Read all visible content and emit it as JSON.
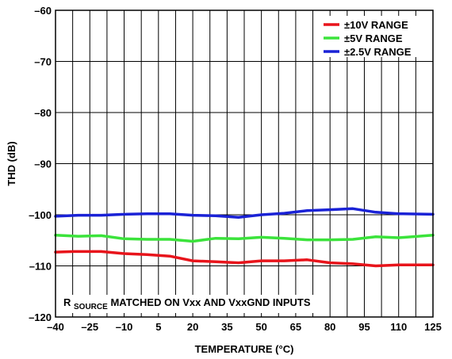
{
  "chart_data": {
    "type": "line",
    "xlabel": "TEMPERATURE (°C)",
    "ylabel": "THD (dB)",
    "xlim": [
      -40,
      125
    ],
    "ylim": [
      -120,
      -60
    ],
    "xticks": [
      -40,
      -25,
      -10,
      5,
      20,
      35,
      50,
      65,
      80,
      95,
      110,
      125
    ],
    "xtick_labels": [
      "–40",
      "–25",
      "–10",
      "5",
      "20",
      "35",
      "50",
      "65",
      "80",
      "95",
      "110",
      "125"
    ],
    "yticks": [
      -120,
      -110,
      -100,
      -90,
      -80,
      -70,
      -60
    ],
    "ytick_labels": [
      "–120",
      "–110",
      "–100",
      "–90",
      "–80",
      "–70",
      "–60"
    ],
    "x_gridlines": [
      -40,
      -32.5,
      -25,
      -17.5,
      -10,
      -2.5,
      5,
      12.5,
      20,
      27.5,
      35,
      42.5,
      50,
      57.5,
      65,
      72.5,
      80,
      87.5,
      95,
      102.5,
      110,
      117.5,
      125
    ],
    "grid": true,
    "legend_position": "top-right",
    "annotation": {
      "base": "R",
      "subscript": "SOURCE",
      "rest": " MATCHED ON Vxx AND VxxGND INPUTS"
    },
    "series": [
      {
        "name": "±10V RANGE",
        "color": "#e8141b",
        "points": [
          [
            -40,
            -107.3
          ],
          [
            -32,
            -107.2
          ],
          [
            -20,
            -107.2
          ],
          [
            -10,
            -107.6
          ],
          [
            0,
            -107.8
          ],
          [
            10,
            -108.1
          ],
          [
            20,
            -109.0
          ],
          [
            30,
            -109.2
          ],
          [
            40,
            -109.4
          ],
          [
            50,
            -109.0
          ],
          [
            60,
            -109.0
          ],
          [
            70,
            -108.8
          ],
          [
            80,
            -109.4
          ],
          [
            90,
            -109.6
          ],
          [
            100,
            -110.0
          ],
          [
            110,
            -109.8
          ],
          [
            125,
            -109.8
          ]
        ]
      },
      {
        "name": "±5V RANGE",
        "color": "#3be33b",
        "points": [
          [
            -40,
            -104.0
          ],
          [
            -30,
            -104.2
          ],
          [
            -20,
            -104.1
          ],
          [
            -10,
            -104.7
          ],
          [
            0,
            -104.8
          ],
          [
            10,
            -104.8
          ],
          [
            20,
            -105.2
          ],
          [
            30,
            -104.6
          ],
          [
            40,
            -104.7
          ],
          [
            50,
            -104.4
          ],
          [
            60,
            -104.6
          ],
          [
            70,
            -104.9
          ],
          [
            80,
            -104.9
          ],
          [
            90,
            -104.8
          ],
          [
            100,
            -104.3
          ],
          [
            110,
            -104.5
          ],
          [
            125,
            -104.0
          ]
        ]
      },
      {
        "name": "±2.5V RANGE",
        "color": "#1a22d6",
        "points": [
          [
            -40,
            -100.3
          ],
          [
            -30,
            -100.1
          ],
          [
            -20,
            -100.1
          ],
          [
            -10,
            -99.9
          ],
          [
            0,
            -99.8
          ],
          [
            10,
            -99.8
          ],
          [
            20,
            -100.1
          ],
          [
            30,
            -100.2
          ],
          [
            40,
            -100.5
          ],
          [
            50,
            -100.0
          ],
          [
            60,
            -99.7
          ],
          [
            70,
            -99.2
          ],
          [
            80,
            -99.0
          ],
          [
            90,
            -98.8
          ],
          [
            100,
            -99.5
          ],
          [
            110,
            -99.8
          ],
          [
            125,
            -99.9
          ]
        ]
      }
    ]
  }
}
